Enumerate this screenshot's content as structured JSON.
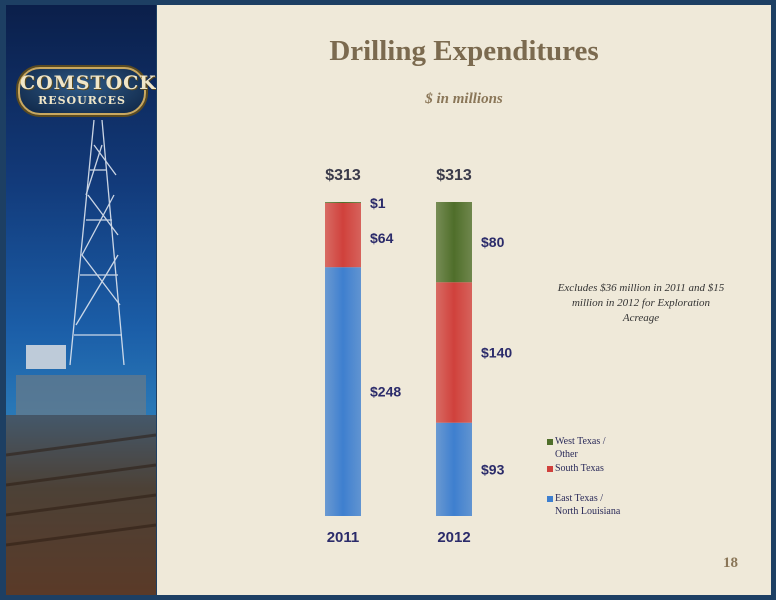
{
  "header": {
    "title": "Drilling Expenditures",
    "subtitle": "$ in millions"
  },
  "logo": {
    "line1": "COMSTOCK",
    "line2": "RESOURCES"
  },
  "note": "Excludes $36  million in 2011 and $15 million in 2012 for Exploration Acreage",
  "page_number": "18",
  "colors": {
    "east": "#3e7fcf",
    "south": "#d0413c",
    "west": "#4f6e2a"
  },
  "chart_data": {
    "type": "bar",
    "stacked": true,
    "categories": [
      "2011",
      "2012"
    ],
    "totals": [
      313,
      313
    ],
    "total_labels": [
      "$313",
      "$313"
    ],
    "ylim": [
      0,
      313
    ],
    "series": [
      {
        "name": "East Texas /\nNorth Louisiana",
        "key": "east",
        "values": [
          248,
          93
        ],
        "labels": [
          "$248",
          "$93"
        ]
      },
      {
        "name": "South Texas",
        "key": "south",
        "values": [
          64,
          140
        ],
        "labels": [
          "$64",
          "$140"
        ]
      },
      {
        "name": "West Texas /\nOther",
        "key": "west",
        "values": [
          1,
          80
        ],
        "labels": [
          "$1",
          "$80"
        ]
      }
    ]
  }
}
